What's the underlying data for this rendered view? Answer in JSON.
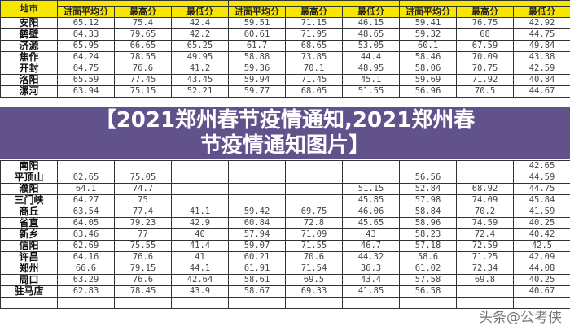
{
  "header": {
    "city_label": "地市",
    "columns": [
      "进面平均分",
      "最高分",
      "最低分",
      "进面平均分",
      "最高分",
      "最低分",
      "进面平均分",
      "最高分",
      "最低分"
    ]
  },
  "rows": [
    {
      "city": "安阳",
      "values": [
        "65.12",
        "75.4",
        "42.4",
        "59.51",
        "71.15",
        "46.15",
        "59.41",
        "76.75",
        "42.92"
      ]
    },
    {
      "city": "鹤壁",
      "values": [
        "64.33",
        "79.65",
        "42.2",
        "60.61",
        "71.95",
        "48.65",
        "59.32",
        "68",
        "44.75"
      ]
    },
    {
      "city": "济源",
      "values": [
        "65.95",
        "66.65",
        "65.25",
        "61.7",
        "68.65",
        "53.05",
        "60.1",
        "67.59",
        "49.84"
      ]
    },
    {
      "city": "焦作",
      "values": [
        "64.24",
        "78.55",
        "49.95",
        "58.88",
        "73.85",
        "44.4",
        "58.46",
        "70.09",
        "43.38"
      ]
    },
    {
      "city": "开封",
      "values": [
        "64.75",
        "76.6",
        "41.2",
        "59.36",
        "70.1",
        "48.95",
        "58.06",
        "70.75",
        "42.59"
      ]
    },
    {
      "city": "洛阳",
      "values": [
        "65.59",
        "77.45",
        "43.45",
        "59.94",
        "71.45",
        "45.1",
        "59.69",
        "71.92",
        "40.84"
      ]
    },
    {
      "city": "漯河",
      "values": [
        "63.94",
        "75.15",
        "52.21",
        "59.77",
        "68.05",
        "51.55",
        "56.96",
        "70.5",
        "44.67"
      ]
    },
    {
      "city": "南阳",
      "values": [
        "",
        "",
        "",
        "",
        "",
        "",
        "",
        "",
        "42.65"
      ]
    },
    {
      "city": "平顶山",
      "values": [
        "62.65",
        "75.05",
        "",
        "",
        "",
        "",
        "56.56",
        "",
        "44.59"
      ]
    },
    {
      "city": "濮阳",
      "values": [
        "64.1",
        "74.7",
        "",
        "",
        "",
        "51.15",
        "52.84",
        "68.92",
        "44.75"
      ]
    },
    {
      "city": "三门峡",
      "values": [
        "64.27",
        "75",
        "",
        "",
        "",
        "45.85",
        "57.98",
        "74.09",
        "45.84"
      ]
    },
    {
      "city": "商丘",
      "values": [
        "63.54",
        "77.4",
        "41.1",
        "59.42",
        "69.75",
        "46.06",
        "58.84",
        "70.2",
        "41.59"
      ]
    },
    {
      "city": "省直",
      "values": [
        "64.05",
        "79.23",
        "42.9",
        "60.84",
        "72.8",
        "45.65",
        "58.96",
        "74.59",
        "40.25"
      ]
    },
    {
      "city": "新乡",
      "values": [
        "63.46",
        "77",
        "40",
        "57.94",
        "71.09",
        "43",
        "58.23",
        "72.4",
        "40.42"
      ]
    },
    {
      "city": "信阳",
      "values": [
        "62.69",
        "75.55",
        "41.4",
        "59.07",
        "71.55",
        "46.7",
        "57.18",
        "72.59",
        "42.5"
      ]
    },
    {
      "city": "许昌",
      "values": [
        "64.16",
        "76.6",
        "41",
        "60.21",
        "70.6",
        "44.32",
        "58.6",
        "71.25",
        "42.09"
      ]
    },
    {
      "city": "郑州",
      "values": [
        "66.6",
        "79.15",
        "44.1",
        "61.91",
        "71.54",
        "36.3",
        "61.02",
        "72.34",
        "44.08"
      ]
    },
    {
      "city": "周口",
      "values": [
        "63.29",
        "76.6",
        "42.64",
        "58.61",
        "69.5",
        "43.4",
        "57.58",
        "69.8",
        "40.25"
      ]
    },
    {
      "city": "驻马店",
      "values": [
        "62.83",
        "78.45",
        "43.9",
        "58.67",
        "69.33",
        "41.85",
        "56.58",
        "",
        "40.67"
      ]
    }
  ],
  "overlay": {
    "title_line1": "【2021郑州春节疫情通知,2021郑州春",
    "title_line2": "节疫情通知图片】"
  },
  "watermark": "头条@公考侠",
  "colors": {
    "header_bg": "#f7e600",
    "overlay": "#463478"
  }
}
